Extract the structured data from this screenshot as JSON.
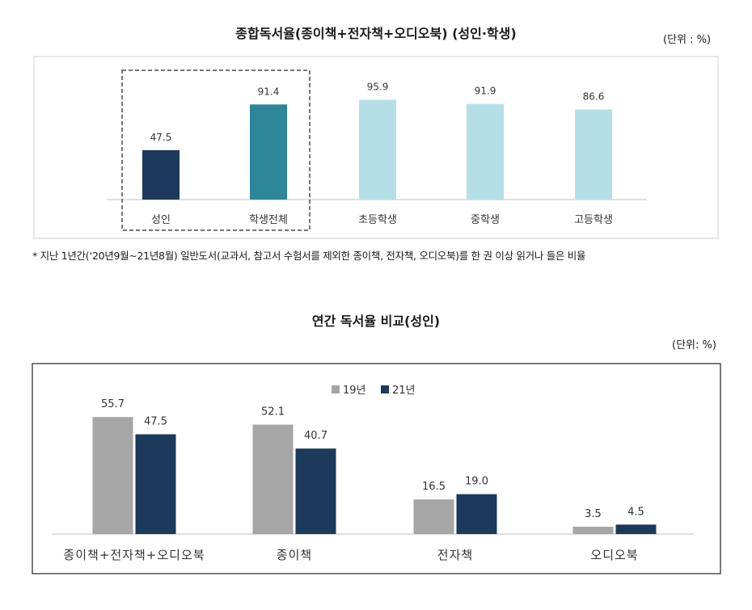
{
  "chart_data": [
    {
      "type": "bar",
      "title": "종합독서율(종이책+전자책+오디오북) (성인·학생)",
      "unit": "(단위 : %)",
      "categories": [
        "성인",
        "학생전체",
        "초등학생",
        "중학생",
        "고등학생"
      ],
      "values": [
        47.5,
        91.4,
        95.9,
        91.9,
        86.6
      ],
      "value_labels": [
        "47.5",
        "91.4",
        "95.9",
        "91.9",
        "86.6"
      ],
      "colors": [
        "#1b3a5c",
        "#2e869a",
        "#b5dfe6",
        "#b5dfe6",
        "#b5dfe6"
      ],
      "ylim": [
        0,
        100
      ],
      "highlight": [
        "성인",
        "학생전체"
      ],
      "footnote": "* 지난 1년간(‘20년9월~21년8월) 일반도서(교과서, 참고서 수험서를 제외한 종이책, 전자책, 오디오북)를 한 권 이상 읽거나 들은 비율"
    },
    {
      "type": "bar",
      "title": "연간 독서율 비교(성인)",
      "unit": "(단위: %)",
      "categories": [
        "종이책+전자책+오디오북",
        "종이책",
        "전자책",
        "오디오북"
      ],
      "series": [
        {
          "name": "19년",
          "color": "#a6a6a6",
          "values": [
            55.7,
            52.1,
            16.5,
            3.5
          ],
          "labels": [
            "55.7",
            "52.1",
            "16.5",
            "3.5"
          ]
        },
        {
          "name": "21년",
          "color": "#1b3a5c",
          "values": [
            47.5,
            40.7,
            19.0,
            4.5
          ],
          "labels": [
            "47.5",
            "40.7",
            "19.0",
            "4.5"
          ]
        }
      ],
      "ylim": [
        0,
        60
      ],
      "legend": "top-center"
    }
  ]
}
